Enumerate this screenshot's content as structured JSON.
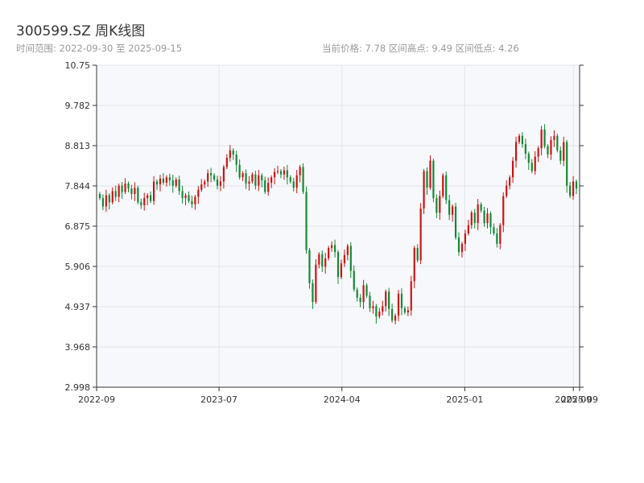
{
  "header": {
    "title": "300599.SZ 周K线图",
    "range_text": "时间范围: 2022-09-30 至 2025-09-15",
    "stats_text": "当前价格: 7.78   区间高点: 9.49   区间低点: 4.26"
  },
  "colors": {
    "up": "#cc1111",
    "down": "#118833",
    "plot_bg": "#f7f8fb",
    "grid": "#e2e5ea",
    "axis": "#333333"
  },
  "chart_data": {
    "type": "candlestick",
    "title": "300599.SZ 周K线图",
    "x_range": [
      "2022-09-30",
      "2025-09-15"
    ],
    "ylim": [
      2.998,
      10.75
    ],
    "y_ticks": [
      "2.998",
      "3.968",
      "4.937",
      "5.906",
      "6.875",
      "7.844",
      "8.813",
      "9.782",
      "10.75"
    ],
    "x_ticks": [
      {
        "label": "2022-09",
        "date": "2022-09-30"
      },
      {
        "label": "2023-07",
        "date": "2023-07-01"
      },
      {
        "label": "2024-04",
        "date": "2024-04-01"
      },
      {
        "label": "2025-01",
        "date": "2025-01-01"
      },
      {
        "label": "2025-09",
        "date": "2025-09-01"
      },
      {
        "label": "2025-09",
        "date": "2025-09-15"
      }
    ],
    "current_price": 7.78,
    "range_high": 9.49,
    "range_low": 4.26,
    "closes": [
      7.55,
      7.35,
      7.62,
      7.45,
      7.72,
      7.58,
      7.85,
      7.7,
      7.9,
      7.78,
      7.65,
      7.8,
      7.45,
      7.38,
      7.55,
      7.62,
      7.48,
      7.95,
      7.88,
      8.02,
      7.92,
      8.05,
      7.98,
      7.85,
      8.0,
      7.72,
      7.55,
      7.62,
      7.48,
      7.4,
      7.58,
      7.75,
      7.88,
      7.95,
      8.15,
      8.1,
      8.0,
      7.85,
      7.95,
      8.3,
      8.52,
      8.7,
      8.6,
      8.35,
      8.05,
      8.15,
      7.9,
      7.95,
      8.12,
      7.85,
      8.1,
      7.98,
      7.7,
      7.92,
      8.05,
      8.18,
      8.2,
      8.12,
      8.22,
      8.05,
      7.95,
      7.8,
      8.1,
      8.3,
      7.7,
      6.3,
      5.5,
      5.05,
      5.95,
      6.2,
      5.9,
      6.1,
      6.35,
      6.42,
      6.25,
      5.65,
      5.98,
      6.18,
      6.4,
      5.8,
      5.35,
      5.15,
      5.05,
      5.45,
      5.2,
      4.9,
      4.95,
      4.7,
      4.82,
      4.95,
      5.3,
      4.88,
      4.6,
      4.72,
      5.25,
      4.9,
      4.8,
      4.85,
      5.55,
      6.35,
      6.05,
      7.3,
      8.2,
      7.8,
      8.45,
      7.55,
      7.2,
      7.6,
      8.1,
      7.5,
      7.15,
      7.35,
      6.6,
      6.25,
      6.45,
      6.7,
      6.9,
      7.2,
      6.95,
      7.4,
      7.25,
      6.95,
      7.18,
      6.85,
      6.7,
      6.45,
      6.9,
      7.6,
      7.85,
      8.05,
      8.45,
      8.9,
      9.05,
      8.85,
      8.62,
      8.4,
      8.2,
      8.55,
      8.75,
      9.2,
      8.8,
      8.6,
      8.95,
      9.05,
      8.7,
      8.45,
      8.9,
      7.85,
      7.6,
      7.95,
      7.78
    ]
  }
}
